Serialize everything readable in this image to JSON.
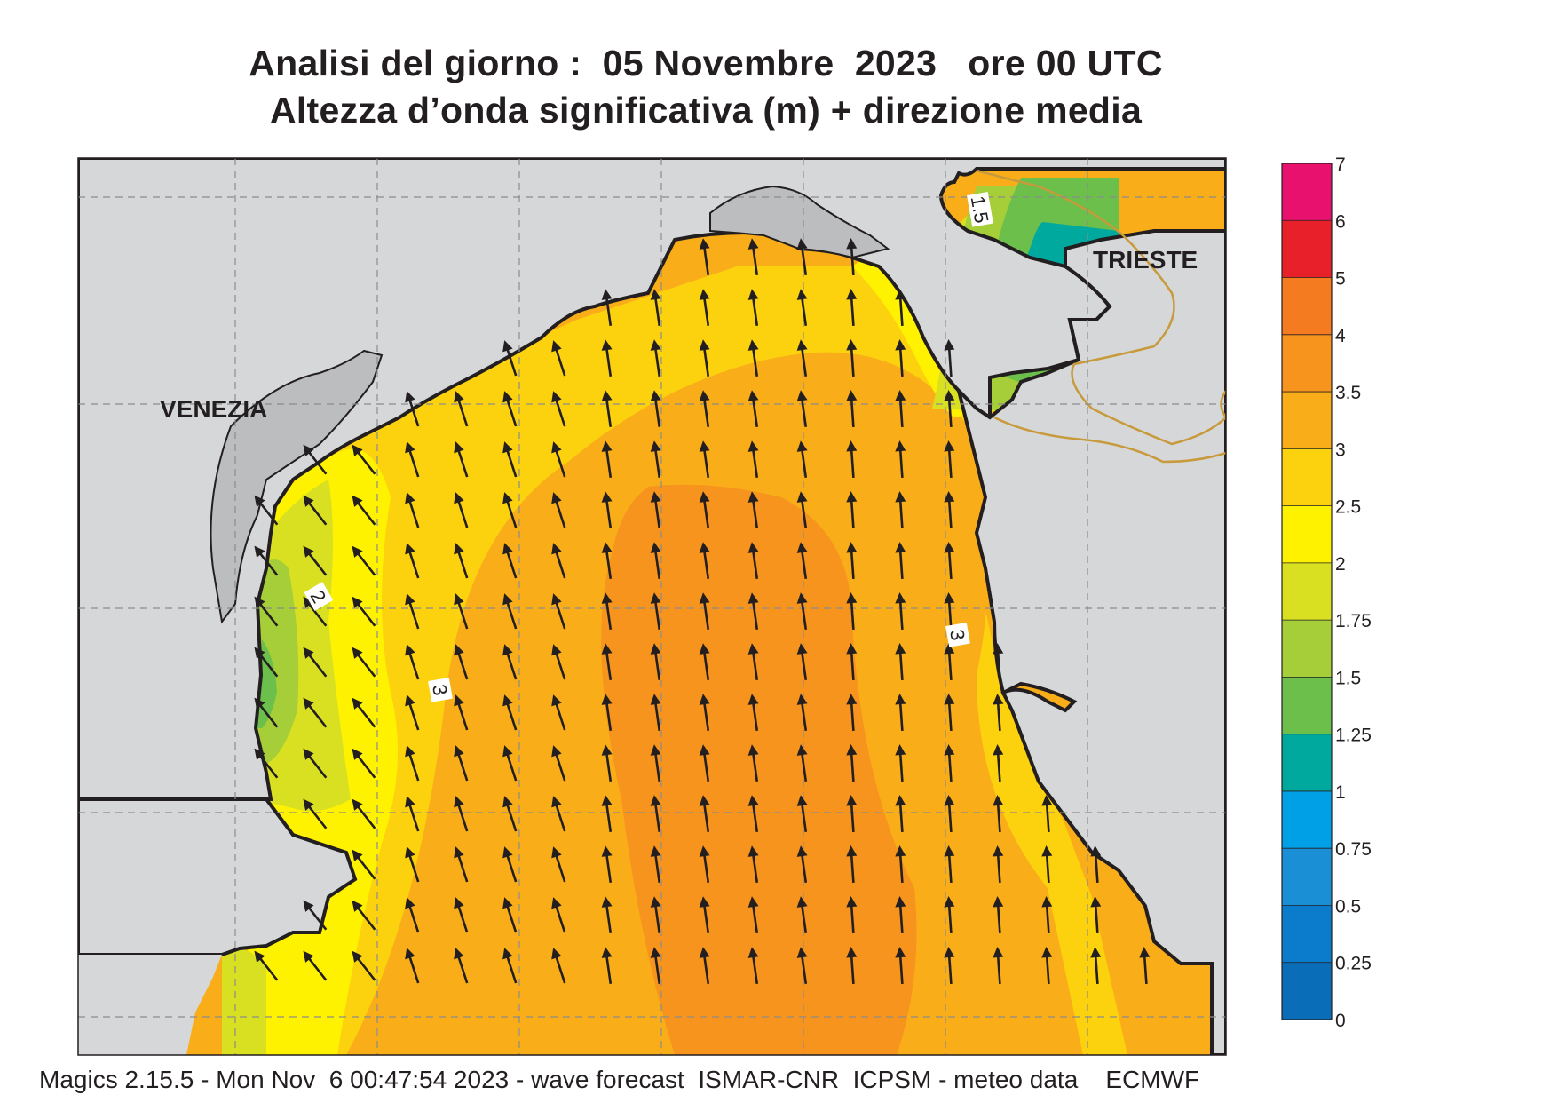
{
  "header": {
    "title_line1": "Analisi del giorno :  05 Novembre  2023   ore 00 UTC",
    "title_line2": "Altezza d’onda significativa (m) + direzione media"
  },
  "map": {
    "place_labels": [
      "VENEZIA",
      "TRIESTE"
    ],
    "contour_labels": [
      "1.5",
      "2",
      "3",
      "3"
    ],
    "colors": {
      "land": "#d6d7d9",
      "coast": "#231f20",
      "border": "#c79a3b",
      "grid": "#8c8c8c",
      "arrow": "#231f20"
    }
  },
  "legend": {
    "ticks": [
      "7",
      "6",
      "5",
      "4",
      "3.5",
      "3",
      "2.5",
      "2",
      "1.75",
      "1.5",
      "1.25",
      "1",
      "0.75",
      "0.5",
      "0.25",
      "0"
    ],
    "colors": [
      "#e8116e",
      "#e8202a",
      "#f47b20",
      "#f6941d",
      "#f9ae19",
      "#fcd20f",
      "#fff200",
      "#d9e021",
      "#a6ce39",
      "#6cbf4b",
      "#00a99d",
      "#00a0e6",
      "#1a8fd6",
      "#0b7ccb",
      "#0a6db7"
    ]
  },
  "footer": {
    "credit": "Magics 2.15.5 - Mon Nov  6 00:47:54 2023 - wave forecast  ISMAR-CNR  ICPSM - meteo data    ECMWF"
  }
}
